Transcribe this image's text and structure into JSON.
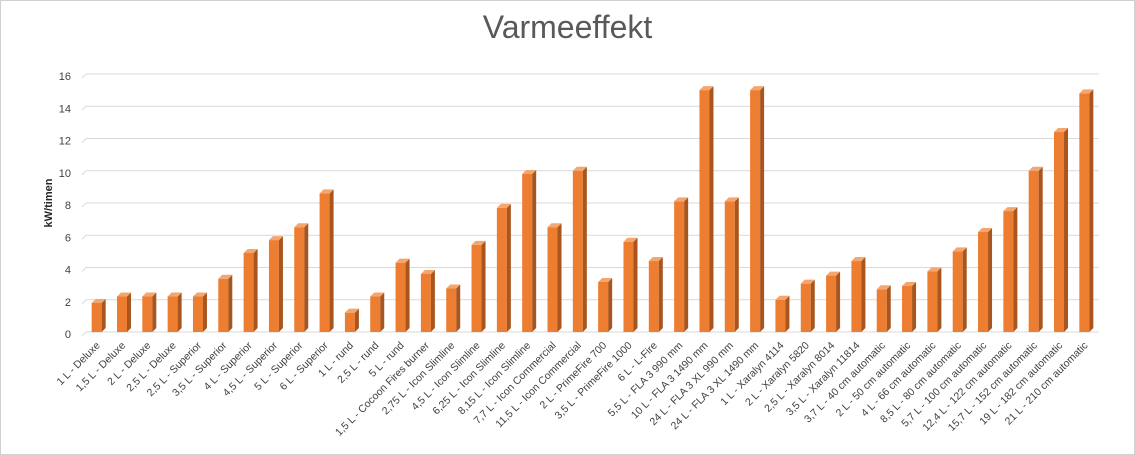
{
  "chart_data": {
    "type": "bar",
    "title": "Varmeeffekt",
    "ylabel": "kW/timen",
    "xlabel": "",
    "ylim": [
      0,
      16
    ],
    "yticks": [
      0,
      2,
      4,
      6,
      8,
      10,
      12,
      14,
      16
    ],
    "grid": true,
    "legend": "none",
    "bar_color": "#ED7D31",
    "categories": [
      "1 L - Deluxe",
      "1,5 L - Deluxe",
      "2 L - Deluxe",
      "2,5 L - Deluxe",
      "2,5 L - Superior",
      "3,5 L - Superior",
      "4 L - Superior",
      "4,5 L - Superior",
      "5 L - Superior",
      "6 L - Superior",
      "1 L - rund",
      "2,5 L - rund",
      "5 L - rund",
      "1,5 L - Cocoon Fires burner",
      "2,75 L - Icon Slimline",
      "4,5 L - Icon Slimline",
      "6,25 L - Icon Slimline",
      "8,15 L - Icon Slimline",
      "7,7 L - Icon Commercial",
      "11,5 L - Icon Commercial",
      "2 L - PrimeFire 700",
      "3,5 L - PrimeFire 1000",
      "6 L - L-Fire",
      "5,5 L - FLA 3 990 mm",
      "10 L - FLA 3 1490 mm",
      "24 L - FLA 3 XL 990 mm",
      "24 L - FLA 3 XL 1490 mm",
      "1 L - Xaralyn 4114",
      "2 L - Xaralyn 5820",
      "2,5 L - Xaralyn 8014",
      "3,5 L - Xaralyn 11814",
      "3,7 L - 40 cm automatic",
      "2 L - 50 cm automatic",
      "4 L - 66 cm automatic",
      "8,5 L - 80 cm automatic",
      "5,7 L - 100 cm automatic",
      "12,4 L - 122 cm automatic",
      "15,7 L - 152 cm automatic",
      "19 L - 182 cm automatic",
      "21 L - 210 cm automatic"
    ],
    "values": [
      1.8,
      2.2,
      2.2,
      2.2,
      2.2,
      3.3,
      4.9,
      5.7,
      6.5,
      8.6,
      1.2,
      2.2,
      4.3,
      3.6,
      2.7,
      5.4,
      7.7,
      9.8,
      6.5,
      10.0,
      3.1,
      5.6,
      4.4,
      8.1,
      15.0,
      8.1,
      15.0,
      2.0,
      3.0,
      3.5,
      4.4,
      2.65,
      2.85,
      3.75,
      5.0,
      6.2,
      7.5,
      10.0,
      12.4,
      14.8
    ]
  }
}
